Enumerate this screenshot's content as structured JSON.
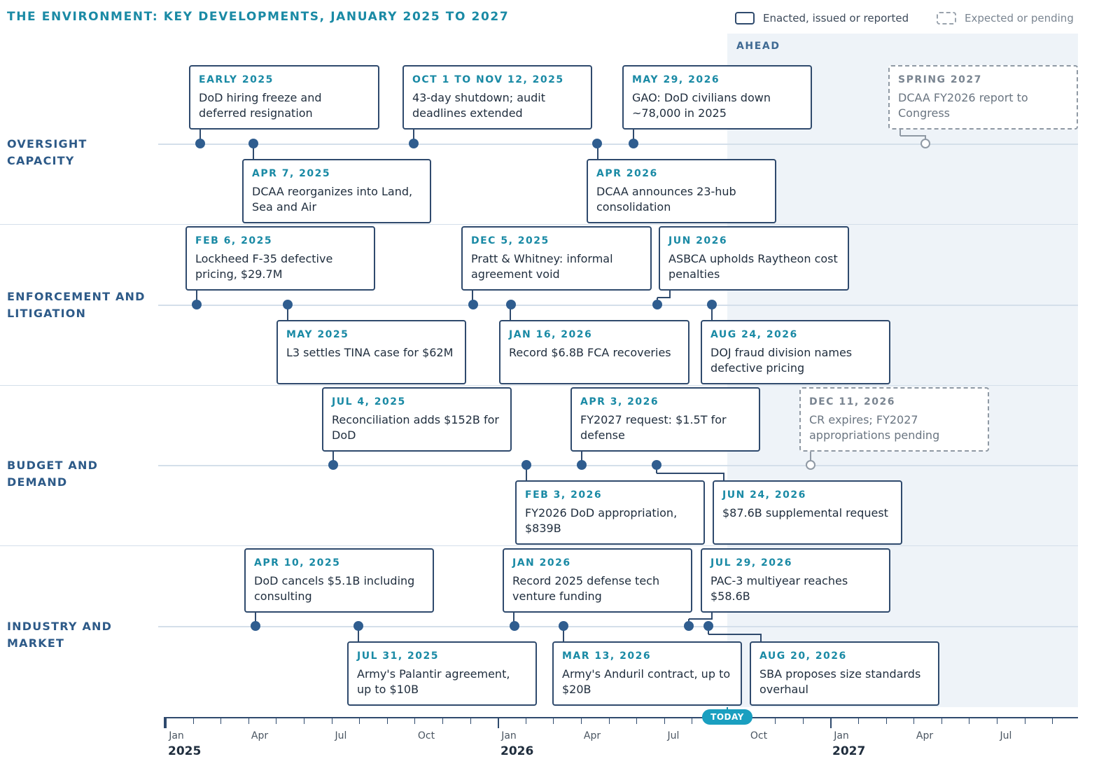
{
  "title": "THE ENVIRONMENT: KEY DEVELOPMENTS, JANUARY 2025 TO 2027",
  "legend": {
    "enacted": "Enacted, issued or reported",
    "expected": "Expected or pending"
  },
  "ahead_label": "AHEAD",
  "lanes": [
    {
      "label": "OVERSIGHT CAPACITY"
    },
    {
      "label": "ENFORCEMENT AND LITIGATION"
    },
    {
      "label": "BUDGET AND DEMAND"
    },
    {
      "label": "INDUSTRY AND MARKET"
    }
  ],
  "events": [
    {
      "date": "EARLY 2025",
      "text": "DoD hiring freeze and deferred resignation",
      "status": "enacted"
    },
    {
      "date": "APR 7, 2025",
      "text": "DCAA reorganizes into Land, Sea and Air",
      "status": "enacted"
    },
    {
      "date": "OCT 1 TO NOV 12, 2025",
      "text": "43-day shutdown; audit deadlines extended",
      "status": "enacted"
    },
    {
      "date": "APR 2026",
      "text": "DCAA announces 23-hub consolidation",
      "status": "enacted"
    },
    {
      "date": "MAY 29, 2026",
      "text": "GAO: DoD civilians down ~78,000 in 2025",
      "status": "enacted"
    },
    {
      "date": "SPRING 2027",
      "text": "DCAA FY2026 report to Congress",
      "status": "expected"
    },
    {
      "date": "FEB 6, 2025",
      "text": "Lockheed F-35 defective pricing, $29.7M",
      "status": "enacted"
    },
    {
      "date": "MAY 2025",
      "text": "L3 settles TINA case for $62M",
      "status": "enacted"
    },
    {
      "date": "DEC 5, 2025",
      "text": "Pratt & Whitney: informal agreement void",
      "status": "enacted"
    },
    {
      "date": "JAN 16, 2026",
      "text": "Record $6.8B FCA recoveries",
      "status": "enacted"
    },
    {
      "date": "JUN 2026",
      "text": "ASBCA upholds Raytheon cost penalties",
      "status": "enacted"
    },
    {
      "date": "AUG 24, 2026",
      "text": "DOJ fraud division names defective pricing",
      "status": "enacted"
    },
    {
      "date": "JUL 4, 2025",
      "text": "Reconciliation adds $152B for DoD",
      "status": "enacted"
    },
    {
      "date": "FEB 3, 2026",
      "text": "FY2026 DoD appropriation, $839B",
      "status": "enacted"
    },
    {
      "date": "APR 3, 2026",
      "text": "FY2027 request: $1.5T for defense",
      "status": "enacted"
    },
    {
      "date": "JUN 24, 2026",
      "text": "$87.6B supplemental request",
      "status": "enacted"
    },
    {
      "date": "DEC 11, 2026",
      "text": "CR expires; FY2027 appropriations pending",
      "status": "expected"
    },
    {
      "date": "APR 10, 2025",
      "text": "DoD cancels $5.1B including consulting",
      "status": "enacted"
    },
    {
      "date": "JUL 31, 2025",
      "text": "Army's Palantir agreement, up to $10B",
      "status": "enacted"
    },
    {
      "date": "JAN 2026",
      "text": "Record 2025 defense tech venture funding",
      "status": "enacted"
    },
    {
      "date": "MAR 13, 2026",
      "text": "Army's Anduril contract, up to $20B",
      "status": "enacted"
    },
    {
      "date": "JUL 29, 2026",
      "text": "PAC-3 multiyear reaches $58.6B",
      "status": "enacted"
    },
    {
      "date": "AUG 20, 2026",
      "text": "SBA proposes size standards overhaul",
      "status": "enacted"
    }
  ],
  "axis": {
    "month_labels": [
      "Jan",
      "Apr",
      "Jul",
      "Oct",
      "Jan",
      "Apr",
      "Jul",
      "Oct",
      "Jan",
      "Apr",
      "Jul"
    ],
    "year_labels": [
      "2025",
      "2026",
      "2027"
    ],
    "today_label": "TODAY"
  }
}
